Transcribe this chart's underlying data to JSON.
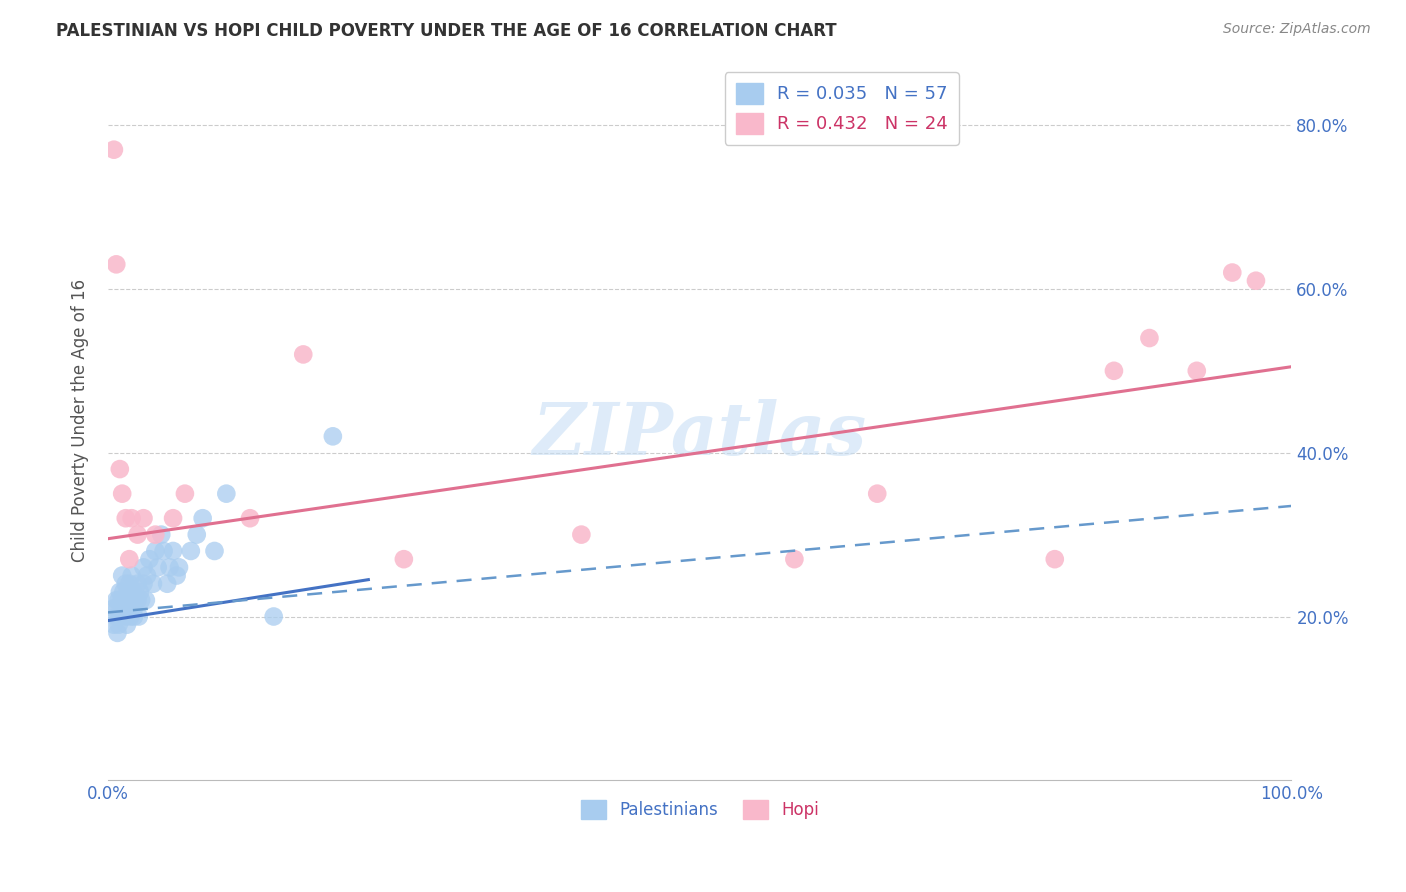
{
  "title": "PALESTINIAN VS HOPI CHILD POVERTY UNDER THE AGE OF 16 CORRELATION CHART",
  "source": "Source: ZipAtlas.com",
  "ylabel": "Child Poverty Under the Age of 16",
  "xlim": [
    0.0,
    1.0
  ],
  "ylim": [
    0.0,
    0.88
  ],
  "xticks": [
    0.0,
    0.2,
    0.4,
    0.6,
    0.8,
    1.0
  ],
  "xtick_labels": [
    "0.0%",
    "",
    "",
    "",
    "",
    "100.0%"
  ],
  "yticks": [
    0.2,
    0.4,
    0.6,
    0.8
  ],
  "ytick_labels": [
    "20.0%",
    "40.0%",
    "60.0%",
    "80.0%"
  ],
  "palestinians_x": [
    0.005,
    0.005,
    0.007,
    0.007,
    0.008,
    0.008,
    0.009,
    0.009,
    0.01,
    0.01,
    0.012,
    0.012,
    0.013,
    0.013,
    0.014,
    0.015,
    0.015,
    0.016,
    0.016,
    0.017,
    0.018,
    0.018,
    0.019,
    0.019,
    0.02,
    0.02,
    0.021,
    0.022,
    0.022,
    0.023,
    0.025,
    0.025,
    0.026,
    0.027,
    0.028,
    0.03,
    0.03,
    0.032,
    0.033,
    0.035,
    0.038,
    0.04,
    0.042,
    0.045,
    0.047,
    0.05,
    0.052,
    0.055,
    0.058,
    0.06,
    0.07,
    0.075,
    0.08,
    0.09,
    0.1,
    0.14,
    0.19
  ],
  "palestinians_y": [
    0.19,
    0.21,
    0.2,
    0.22,
    0.21,
    0.18,
    0.19,
    0.22,
    0.2,
    0.23,
    0.22,
    0.25,
    0.21,
    0.23,
    0.22,
    0.2,
    0.24,
    0.21,
    0.19,
    0.23,
    0.22,
    0.24,
    0.21,
    0.2,
    0.22,
    0.25,
    0.23,
    0.21,
    0.2,
    0.22,
    0.24,
    0.22,
    0.2,
    0.23,
    0.22,
    0.26,
    0.24,
    0.22,
    0.25,
    0.27,
    0.24,
    0.28,
    0.26,
    0.3,
    0.28,
    0.24,
    0.26,
    0.28,
    0.25,
    0.26,
    0.28,
    0.3,
    0.32,
    0.28,
    0.35,
    0.2,
    0.42
  ],
  "hopi_x": [
    0.005,
    0.007,
    0.01,
    0.012,
    0.015,
    0.018,
    0.02,
    0.025,
    0.03,
    0.04,
    0.055,
    0.065,
    0.12,
    0.165,
    0.25,
    0.4,
    0.58,
    0.65,
    0.8,
    0.85,
    0.88,
    0.92,
    0.95,
    0.97
  ],
  "hopi_y": [
    0.77,
    0.63,
    0.38,
    0.35,
    0.32,
    0.27,
    0.32,
    0.3,
    0.32,
    0.3,
    0.32,
    0.35,
    0.32,
    0.52,
    0.27,
    0.3,
    0.27,
    0.35,
    0.27,
    0.5,
    0.54,
    0.5,
    0.62,
    0.61
  ],
  "blue_color": "#a8ccef",
  "pink_color": "#f9b8cb",
  "blue_line_color": "#4472c4",
  "pink_line_color": "#e07090",
  "blue_dashed_color": "#6699cc",
  "watermark_color": "#c8dff5",
  "background_color": "#ffffff",
  "blue_solid_line": {
    "x0": 0.0,
    "x1": 0.22,
    "y0": 0.195,
    "y1": 0.245
  },
  "blue_dashed_line": {
    "x0": 0.0,
    "x1": 1.0,
    "y0": 0.205,
    "y1": 0.335
  },
  "pink_solid_line": {
    "x0": 0.0,
    "x1": 1.0,
    "y0": 0.295,
    "y1": 0.505
  }
}
